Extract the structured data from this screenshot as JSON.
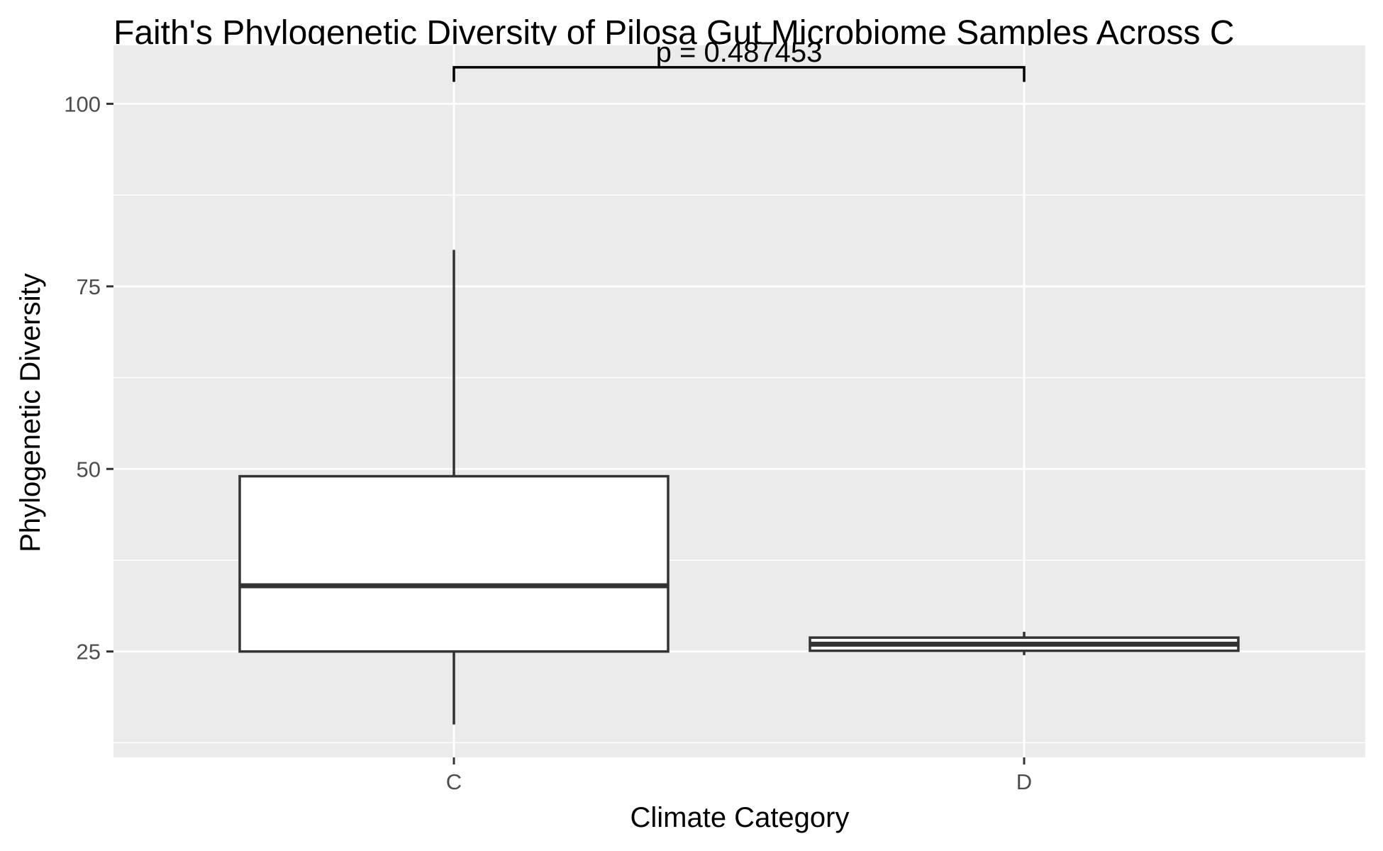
{
  "chart_data": {
    "type": "box",
    "title": "Faith's Phylogenetic Diversity of Pilosa Gut Microbiome Samples Across C",
    "xlabel": "Climate Category",
    "ylabel": "Phylogenetic Diversity",
    "categories": [
      "C",
      "D"
    ],
    "boxes": [
      {
        "category": "C",
        "whisker_low": 15,
        "q1": 25,
        "median": 34,
        "q3": 49,
        "whisker_high": 80
      },
      {
        "category": "D",
        "whisker_low": 24.5,
        "q1": 25.1,
        "median": 26,
        "q3": 26.9,
        "whisker_high": 27.7
      }
    ],
    "ylim": [
      10.5,
      108
    ],
    "yticks": [
      25,
      50,
      75,
      100
    ],
    "ytick_labels": [
      "25",
      "50",
      "75",
      "100"
    ],
    "minor_gridlines": [
      12.5,
      37.5,
      62.5,
      87.5
    ],
    "grid": true,
    "annotation": {
      "text": "p = 0.487453",
      "from": "C",
      "to": "D",
      "y": 105,
      "tip_y": 103
    },
    "colors": {
      "panel_background": "#ebebeb",
      "gridline": "#ffffff",
      "box_fill": "#ffffff",
      "box_stroke": "#333333",
      "tick_text": "#4d4d4d",
      "annotation": "#000000"
    }
  }
}
